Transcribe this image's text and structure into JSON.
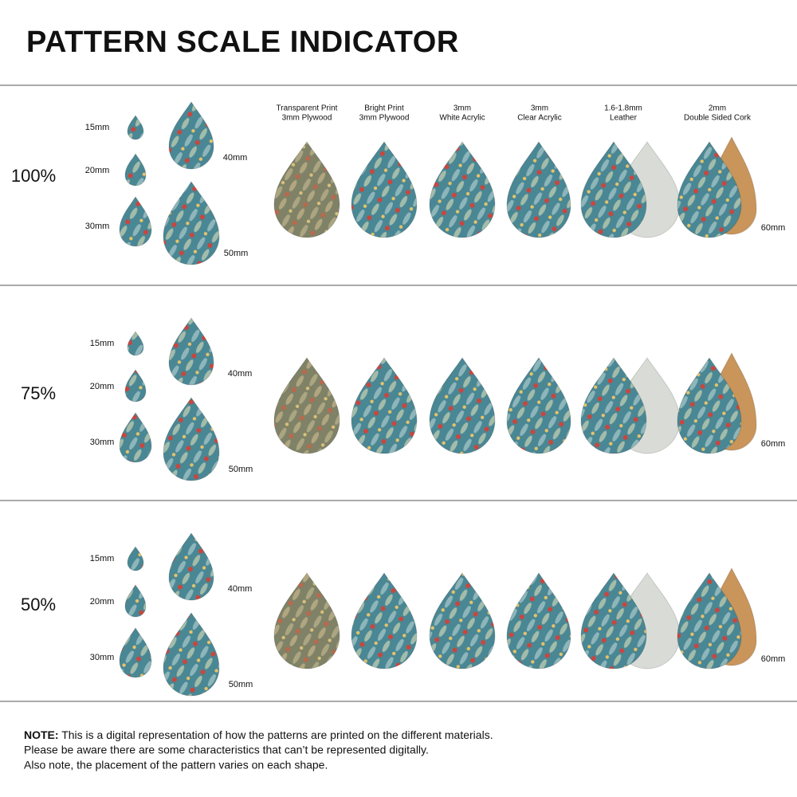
{
  "title": "PATTERN SCALE INDICATOR",
  "materials": [
    {
      "line1": "Transparent Print",
      "line2": "3mm Plywood"
    },
    {
      "line1": "Bright Print",
      "line2": "3mm Plywood"
    },
    {
      "line1": "3mm",
      "line2": "White Acrylic"
    },
    {
      "line1": "3mm",
      "line2": "Clear Acrylic"
    },
    {
      "line1": "1.6-1.8mm",
      "line2": "Leather"
    },
    {
      "line1": "2mm",
      "line2": "Double Sided Cork"
    }
  ],
  "rows": [
    {
      "scale": "100%",
      "sizes": [
        "15mm",
        "20mm",
        "30mm",
        "40mm",
        "50mm"
      ],
      "large_size": "60mm"
    },
    {
      "scale": "75%",
      "sizes": [
        "15mm",
        "20mm",
        "30mm",
        "40mm",
        "50mm"
      ],
      "large_size": "60mm"
    },
    {
      "scale": "50%",
      "sizes": [
        "15mm",
        "20mm",
        "30mm",
        "40mm",
        "50mm"
      ],
      "large_size": "60mm"
    }
  ],
  "note": {
    "label": "NOTE:",
    "lines": [
      "This is a digital representation of how the patterns are printed on the different materials.",
      "Please be aware there are some characteristics that can’t be represented digitally.",
      "Also note, the placement of the pattern varies on each shape."
    ]
  }
}
